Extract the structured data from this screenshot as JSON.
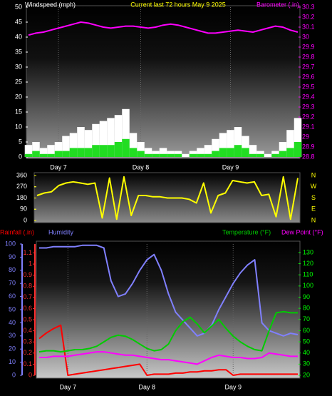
{
  "chart_data": [
    {
      "type": "line",
      "title": "Current last 72 hours May 9 2025",
      "categories": [
        null,
        null,
        null,
        null,
        "Day 7",
        null,
        null,
        null,
        null,
        null,
        null,
        null,
        null,
        null,
        null,
        "Day 8",
        null,
        null,
        null,
        null,
        null,
        null,
        null,
        null,
        null,
        null,
        null,
        "Day 9",
        null,
        null,
        null,
        null,
        null,
        null,
        null,
        null,
        null
      ],
      "ylim": [
        0,
        50
      ],
      "yticks": [
        0,
        5,
        10,
        15,
        20,
        25,
        30,
        35,
        40,
        45,
        50
      ],
      "y2lim": [
        28.8,
        30.3
      ],
      "y2ticks": [
        28.8,
        28.9,
        29,
        29.1,
        29.2,
        29.3,
        29.4,
        29.5,
        29.6,
        29.7,
        29.8,
        29.9,
        30,
        30.1,
        30.2,
        30.3
      ],
      "series": [
        {
          "name": "Windspeed (mph)",
          "type": "bar",
          "color": "#ffffff",
          "values": [
            4,
            5,
            3,
            4,
            5,
            7,
            8,
            10,
            9,
            11,
            12,
            13,
            14,
            16,
            8,
            5,
            3,
            2,
            3,
            2,
            2,
            1,
            2,
            3,
            4,
            6,
            8,
            9,
            10,
            7,
            4,
            2,
            1,
            2,
            5,
            9,
            13
          ]
        },
        {
          "type": "bar",
          "color": "#22dd22",
          "values": [
            1,
            2,
            1,
            1,
            2,
            2,
            3,
            3,
            3,
            4,
            4,
            4,
            5,
            6,
            3,
            2,
            1,
            1,
            1,
            1,
            1,
            0,
            1,
            1,
            1,
            2,
            3,
            3,
            4,
            3,
            1,
            1,
            0,
            1,
            2,
            3,
            5
          ]
        },
        {
          "name": "Barometer (.in)",
          "type": "line",
          "axis": "y2",
          "color": "#ff00ff",
          "values": [
            30.02,
            30.04,
            30.05,
            30.07,
            30.09,
            30.11,
            30.13,
            30.15,
            30.14,
            30.12,
            30.1,
            30.09,
            30.1,
            30.11,
            30.11,
            30.1,
            30.09,
            30.1,
            30.12,
            30.13,
            30.12,
            30.1,
            30.08,
            30.06,
            30.04,
            30.04,
            30.05,
            30.06,
            30.07,
            30.06,
            30.05,
            30.07,
            30.09,
            30.11,
            30.1,
            30.07,
            30.05
          ]
        }
      ]
    },
    {
      "type": "line",
      "ylim": [
        0,
        360
      ],
      "yticks": [
        0,
        90,
        180,
        270,
        360
      ],
      "y2lim": [
        0,
        360
      ],
      "y2ticks": [
        {
          "value": 360,
          "label": "N"
        },
        {
          "value": 270,
          "label": "W"
        },
        {
          "value": 180,
          "label": "S"
        },
        {
          "value": 90,
          "label": "E"
        },
        {
          "value": 0,
          "label": "N"
        }
      ],
      "series": [
        {
          "type": "line",
          "color": "#ffff00",
          "values": [
            200,
            220,
            230,
            280,
            300,
            310,
            300,
            290,
            300,
            20,
            340,
            10,
            350,
            40,
            200,
            200,
            190,
            190,
            180,
            180,
            180,
            170,
            140,
            300,
            60,
            200,
            220,
            320,
            310,
            300,
            310,
            200,
            210,
            30,
            350,
            10,
            340
          ]
        }
      ]
    },
    {
      "type": "line",
      "categories": [
        null,
        null,
        null,
        null,
        "Day 7",
        null,
        null,
        null,
        null,
        null,
        null,
        null,
        null,
        null,
        null,
        "Day 8",
        null,
        null,
        null,
        null,
        null,
        null,
        null,
        null,
        null,
        null,
        null,
        "Day 9",
        null,
        null,
        null,
        null,
        null,
        null,
        null,
        null,
        null
      ],
      "ylim": [
        0,
        100
      ],
      "yticks": [
        0,
        10,
        20,
        30,
        40,
        50,
        60,
        70,
        80,
        90,
        100
      ],
      "y3lim": [
        0,
        1.18
      ],
      "y3ticks": [
        0,
        0.1,
        0.2,
        0.3,
        0.4,
        0.5,
        0.6,
        0.7,
        0.8,
        0.9,
        1,
        1.1
      ],
      "y2lim": [
        20,
        137.6
      ],
      "y2ticks": [
        20,
        30,
        40,
        50,
        60,
        70,
        80,
        90,
        100,
        110,
        120,
        130
      ],
      "series": [
        {
          "name": "Rainfall (.in)",
          "type": "line",
          "axis": "y3",
          "color": "#ff0000",
          "values": [
            0.33,
            0.38,
            0.42,
            0.45,
            0,
            0.01,
            0.02,
            0.03,
            0.04,
            0.05,
            0.06,
            0.07,
            0.08,
            0.09,
            0.1,
            0,
            0.01,
            0.01,
            0.01,
            0.02,
            0.02,
            0.03,
            0.03,
            0.04,
            0.04,
            0.05,
            0.05,
            0,
            0.01,
            0.01,
            0.01,
            0.01,
            0.01,
            0.01,
            0.01,
            0.01,
            0.01
          ]
        },
        {
          "name": "Humidity",
          "type": "line",
          "color": "#8080ff",
          "values": [
            97,
            97,
            98,
            98,
            98,
            98,
            99,
            99,
            99,
            97,
            72,
            60,
            62,
            70,
            80,
            88,
            92,
            80,
            62,
            48,
            42,
            36,
            30,
            32,
            38,
            50,
            60,
            70,
            78,
            84,
            88,
            40,
            34,
            32,
            30,
            32,
            31
          ]
        },
        {
          "name": "Temperature (°F)",
          "type": "line",
          "axis": "y2",
          "color": "#00cc00",
          "values": [
            41,
            42,
            42,
            41,
            42,
            43,
            43,
            44,
            46,
            50,
            54,
            56,
            55,
            52,
            48,
            44,
            42,
            43,
            48,
            60,
            68,
            72,
            66,
            58,
            64,
            70,
            62,
            55,
            50,
            46,
            43,
            42,
            60,
            76,
            77,
            76,
            76
          ]
        },
        {
          "name": "Dew Point (°F)",
          "type": "line",
          "axis": "y2",
          "color": "#ff00ff",
          "values": [
            36,
            36,
            37,
            37,
            37,
            38,
            39,
            40,
            41,
            41,
            40,
            39,
            38,
            38,
            37,
            36,
            35,
            34,
            34,
            33,
            32,
            31,
            30,
            33,
            36,
            38,
            37,
            36,
            36,
            35,
            35,
            36,
            40,
            39,
            38,
            37,
            37
          ]
        }
      ]
    }
  ]
}
